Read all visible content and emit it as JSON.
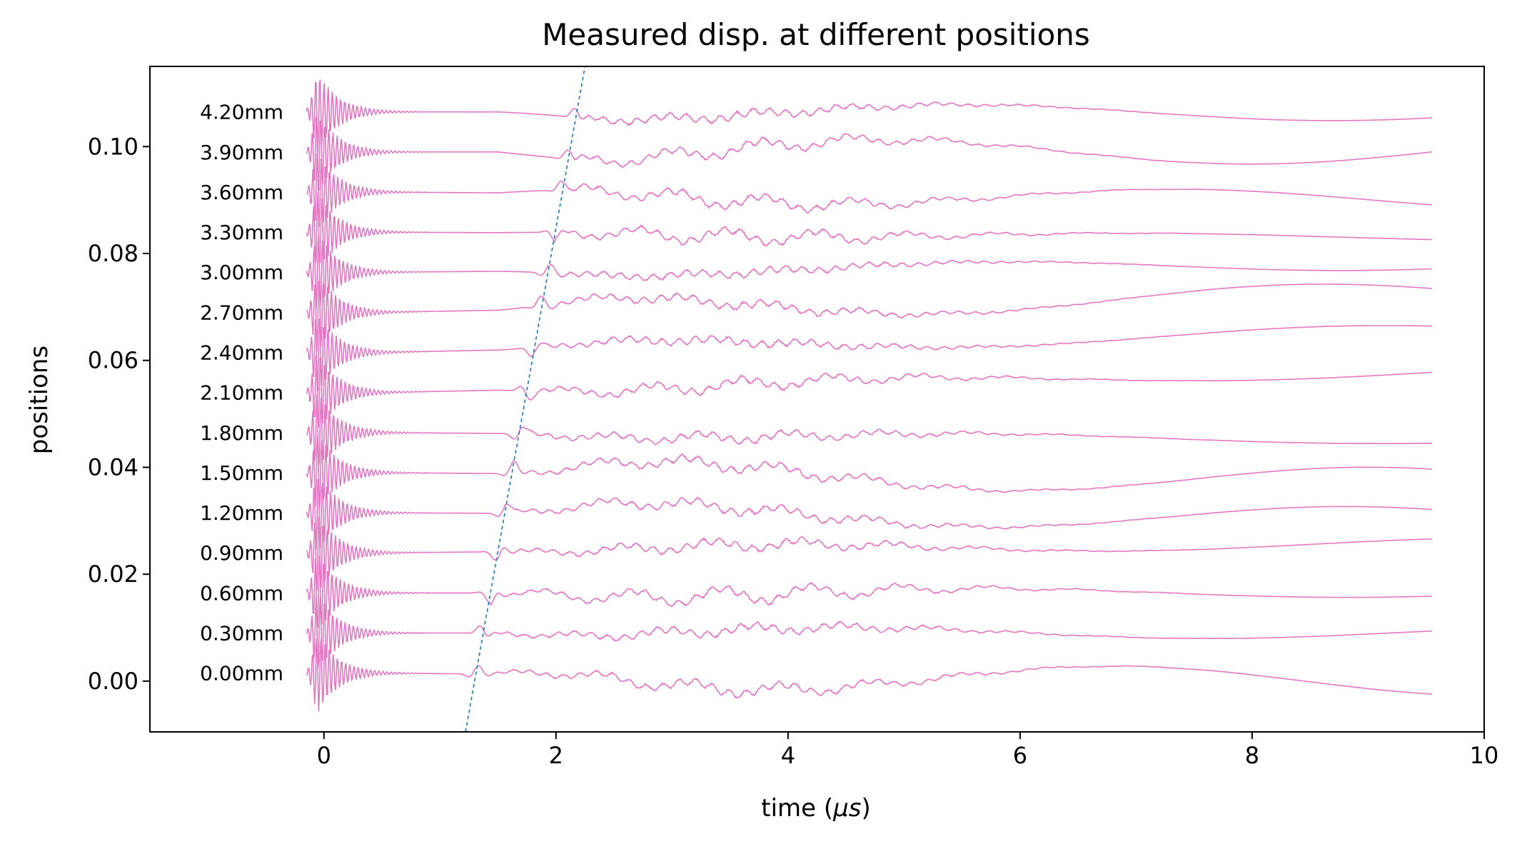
{
  "chart_data": {
    "type": "line",
    "title": "Measured disp. at different positions",
    "xlabel_text": "time (",
    "xlabel_mu": "μs",
    "xlabel_close": ")",
    "ylabel": "positions",
    "xlim": [
      -1.5,
      10
    ],
    "ylim": [
      -0.0095,
      0.115
    ],
    "xticks": [
      0,
      2,
      4,
      6,
      8,
      10
    ],
    "yticks": [
      0.0,
      0.02,
      0.04,
      0.06,
      0.08,
      0.1
    ],
    "ytick_labels": [
      "0.00",
      "0.02",
      "0.04",
      "0.06",
      "0.08",
      "0.10"
    ],
    "trace_color": "#e377c2",
    "line_color": "#1f77b4",
    "trace_time_range": [
      -0.15,
      9.55
    ],
    "series": [
      {
        "name": "0.00mm",
        "offset": 0.0015,
        "end_value": -0.0002
      },
      {
        "name": "0.30mm",
        "offset": 0.009,
        "end_value": 0.009
      },
      {
        "name": "0.60mm",
        "offset": 0.0165,
        "end_value": 0.0165
      },
      {
        "name": "0.90mm",
        "offset": 0.024,
        "end_value": 0.0258
      },
      {
        "name": "1.20mm",
        "offset": 0.0315,
        "end_value": 0.0305
      },
      {
        "name": "1.50mm",
        "offset": 0.039,
        "end_value": 0.0375
      },
      {
        "name": "1.80mm",
        "offset": 0.0465,
        "end_value": 0.045
      },
      {
        "name": "2.10mm",
        "offset": 0.054,
        "end_value": 0.0578
      },
      {
        "name": "2.40mm",
        "offset": 0.0615,
        "end_value": 0.0655
      },
      {
        "name": "2.70mm",
        "offset": 0.069,
        "end_value": 0.0725
      },
      {
        "name": "3.00mm",
        "offset": 0.0765,
        "end_value": 0.078
      },
      {
        "name": "3.30mm",
        "offset": 0.084,
        "end_value": 0.083
      },
      {
        "name": "3.60mm",
        "offset": 0.0915,
        "end_value": 0.09
      },
      {
        "name": "3.90mm",
        "offset": 0.099,
        "end_value": 0.099
      },
      {
        "name": "4.20mm",
        "offset": 0.1065,
        "end_value": 0.1063
      }
    ],
    "wavefront_line": {
      "x": [
        1.22,
        2.25
      ],
      "y": [
        -0.0095,
        0.115
      ],
      "style": "dashed"
    }
  }
}
